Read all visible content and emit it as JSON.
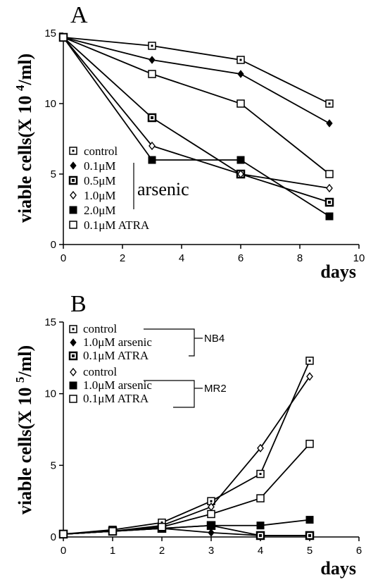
{
  "chart_data": [
    {
      "type": "line",
      "panel_label": "A",
      "xlabel": "days",
      "ylabel": "viable cells(X 10 4/ml)",
      "ylabel_main": "viable cells(X 10 ",
      "ylabel_exp": "4",
      "ylabel_tail": "/ml)",
      "xlim": [
        0,
        10
      ],
      "ylim": [
        0,
        15
      ],
      "xticks": [
        "0",
        "2",
        "4",
        "6",
        "8",
        "10"
      ],
      "yticks": [
        "0",
        "5",
        "10",
        "15"
      ],
      "group_label": "arsenic",
      "series": [
        {
          "name": "control",
          "marker": "open-square-dot",
          "x": [
            0,
            3,
            6,
            9
          ],
          "y": [
            14.7,
            14.1,
            13.1,
            10.0
          ]
        },
        {
          "name": "0.1μM",
          "marker": "filled-diamond",
          "x": [
            0,
            3,
            6,
            9
          ],
          "y": [
            14.7,
            13.1,
            12.1,
            8.6
          ]
        },
        {
          "name": "0.5μM",
          "marker": "dot-square",
          "x": [
            0,
            3,
            6,
            9
          ],
          "y": [
            14.7,
            9.0,
            5.0,
            3.0
          ]
        },
        {
          "name": "1.0μM",
          "marker": "open-diamond",
          "x": [
            0,
            3,
            6,
            9
          ],
          "y": [
            14.7,
            7.0,
            5.0,
            4.0
          ]
        },
        {
          "name": "2.0μM",
          "marker": "filled-square",
          "x": [
            0,
            3,
            6,
            9
          ],
          "y": [
            14.7,
            6.0,
            6.0,
            2.0
          ]
        },
        {
          "name": "0.1μM ATRA",
          "marker": "open-square",
          "x": [
            0,
            3,
            6,
            9
          ],
          "y": [
            14.7,
            12.1,
            10.0,
            5.0
          ]
        }
      ]
    },
    {
      "type": "line",
      "panel_label": "B",
      "xlabel": "days",
      "ylabel": "viable cells(X 10 5/ml)",
      "ylabel_main": "viable cells(X 10 ",
      "ylabel_exp": "5",
      "ylabel_tail": "/ml)",
      "xlim": [
        0,
        6
      ],
      "ylim": [
        0,
        15
      ],
      "xticks": [
        "0",
        "1",
        "2",
        "3",
        "4",
        "5",
        "6"
      ],
      "yticks": [
        "0",
        "5",
        "10",
        "15"
      ],
      "groups": [
        "NB4",
        "MR2"
      ],
      "series": [
        {
          "name": "control",
          "group": "NB4",
          "marker": "open-square-dot",
          "x": [
            0,
            1,
            2,
            3,
            4,
            5
          ],
          "y": [
            0.2,
            0.5,
            1.0,
            2.5,
            4.4,
            12.3
          ]
        },
        {
          "name": "1.0μM arsenic",
          "group": "NB4",
          "marker": "filled-diamond",
          "x": [
            0,
            1,
            2,
            3,
            4,
            5
          ],
          "y": [
            0.2,
            0.4,
            0.6,
            0.3,
            0.1,
            0.1
          ]
        },
        {
          "name": "0.1μM ATRA",
          "group": "NB4",
          "marker": "dot-square",
          "x": [
            0,
            1,
            2,
            3,
            4,
            5
          ],
          "y": [
            0.2,
            0.4,
            0.6,
            0.8,
            0.1,
            0.1
          ]
        },
        {
          "name": "control",
          "group": "MR2",
          "marker": "open-diamond",
          "x": [
            0,
            1,
            2,
            3,
            4,
            5
          ],
          "y": [
            0.2,
            0.4,
            0.8,
            2.1,
            6.2,
            11.2
          ]
        },
        {
          "name": "1.0μM arsenic",
          "group": "MR2",
          "marker": "filled-square",
          "x": [
            0,
            1,
            2,
            3,
            4,
            5
          ],
          "y": [
            0.2,
            0.4,
            0.6,
            0.8,
            0.8,
            1.2
          ]
        },
        {
          "name": "0.1μM ATRA",
          "group": "MR2",
          "marker": "open-square",
          "x": [
            0,
            1,
            2,
            3,
            4,
            5
          ],
          "y": [
            0.2,
            0.4,
            0.7,
            1.6,
            2.7,
            6.5
          ]
        }
      ]
    }
  ]
}
